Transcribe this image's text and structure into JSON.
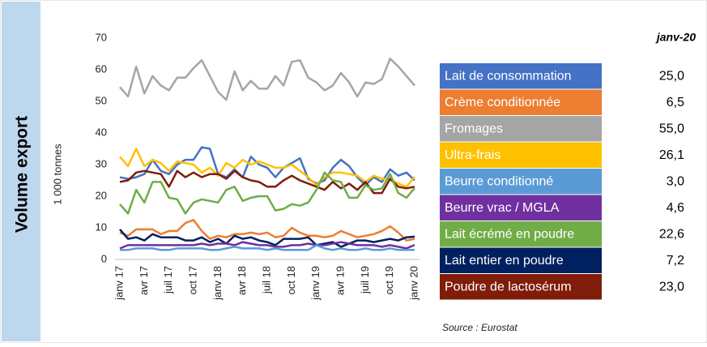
{
  "chart_data": {
    "type": "line",
    "y_label": "Volume export",
    "y_unit": "1 000 tonnes",
    "legend_header": "janv-20",
    "source": "Source : Eurostat",
    "ylim": [
      0,
      70
    ],
    "yticks": [
      0,
      10,
      20,
      30,
      40,
      50,
      60,
      70
    ],
    "categories": [
      "janv 17",
      null,
      null,
      "avr 17",
      null,
      null,
      "juil 17",
      null,
      null,
      "oct 17",
      null,
      null,
      "janv 18",
      null,
      null,
      "avr 18",
      null,
      null,
      "juil 18",
      null,
      null,
      "oct 18",
      null,
      null,
      "janv 19",
      null,
      null,
      "avr 19",
      null,
      null,
      "juil 19",
      null,
      null,
      "oct 19",
      null,
      null,
      "janv 20"
    ],
    "series": [
      {
        "name": "Lait de consommation",
        "color": "#4472c4",
        "values": [
          26,
          25.5,
          26,
          27,
          31.5,
          28,
          27,
          30,
          31.5,
          31.5,
          35.5,
          35,
          27,
          26,
          28.5,
          26,
          32.5,
          30,
          29,
          26,
          29,
          30.5,
          32,
          25.5,
          24,
          25,
          29,
          31.5,
          29.5,
          26,
          23.5,
          26,
          24.5,
          28.5,
          26.5,
          27.5,
          25.0
        ],
        "value_labels": [
          null,
          null,
          null,
          null,
          null,
          null,
          null,
          null,
          null,
          null,
          null,
          null,
          null,
          null,
          null,
          null,
          null,
          null,
          null,
          null,
          null,
          null,
          null,
          null,
          null,
          null,
          null,
          null,
          null,
          null,
          null,
          null,
          null,
          null,
          null,
          null,
          "25,0"
        ]
      },
      {
        "name": "Crème conditionnée",
        "color": "#ed7d31",
        "values": [
          8.5,
          7.5,
          9.5,
          9.5,
          9.5,
          8,
          9,
          9,
          11.5,
          12.5,
          9,
          6.5,
          7.5,
          7,
          8,
          8,
          8.5,
          8,
          8.5,
          7,
          7.5,
          10,
          8.5,
          7.5,
          7.5,
          7,
          7.5,
          9,
          8,
          7,
          7.5,
          8,
          9,
          10.5,
          8.5,
          6,
          6.5
        ],
        "value_labels": [
          null,
          null,
          null,
          null,
          null,
          null,
          null,
          null,
          null,
          null,
          null,
          null,
          null,
          null,
          null,
          null,
          null,
          null,
          null,
          null,
          null,
          null,
          null,
          null,
          null,
          null,
          null,
          null,
          null,
          null,
          null,
          null,
          null,
          null,
          null,
          null,
          "6,5"
        ]
      },
      {
        "name": "Fromages",
        "color": "#a5a5a5",
        "values": [
          54.5,
          51.5,
          61,
          52.5,
          58,
          55,
          53.5,
          57.5,
          57.5,
          60.5,
          63,
          58,
          53,
          50.5,
          59.5,
          53.5,
          56.5,
          54,
          54,
          58,
          55,
          62.5,
          63,
          57.5,
          56,
          53.5,
          55,
          59,
          56,
          51.5,
          56,
          55.5,
          57,
          63.5,
          61,
          58,
          55.0
        ],
        "value_labels": [
          null,
          null,
          null,
          null,
          null,
          null,
          null,
          null,
          null,
          null,
          null,
          null,
          null,
          null,
          null,
          null,
          null,
          null,
          null,
          null,
          null,
          null,
          null,
          null,
          null,
          null,
          null,
          null,
          null,
          null,
          null,
          null,
          null,
          null,
          null,
          null,
          "55,0"
        ]
      },
      {
        "name": "Ultra-frais",
        "color": "#ffc000",
        "values": [
          32.5,
          29.5,
          35,
          29.5,
          31.5,
          30.5,
          28,
          31,
          30.5,
          30,
          27.5,
          29,
          26.5,
          30.5,
          29,
          31.5,
          30,
          31,
          30,
          29,
          29,
          30,
          28,
          26,
          23.5,
          26,
          27.5,
          27.5,
          27,
          26.5,
          24.5,
          26.5,
          25.5,
          25.5,
          24,
          23,
          26.1
        ],
        "value_labels": [
          null,
          null,
          null,
          null,
          null,
          null,
          null,
          null,
          null,
          null,
          null,
          null,
          null,
          null,
          null,
          null,
          null,
          null,
          null,
          null,
          null,
          null,
          null,
          null,
          null,
          null,
          null,
          null,
          null,
          null,
          null,
          null,
          null,
          null,
          null,
          null,
          "26,1"
        ]
      },
      {
        "name": "Beurre conditionné",
        "color": "#5b9bd5",
        "values": [
          3,
          3,
          3.5,
          3.5,
          3.5,
          3,
          3,
          3.5,
          3.5,
          3.5,
          3.5,
          3,
          3,
          3.5,
          4,
          3.5,
          3.5,
          3.5,
          3,
          3.5,
          3,
          3,
          3,
          3,
          4.5,
          3.5,
          3,
          3.5,
          3,
          3,
          3.5,
          3,
          3,
          3.5,
          3,
          3,
          3.0
        ],
        "value_labels": [
          null,
          null,
          null,
          null,
          null,
          null,
          null,
          null,
          null,
          null,
          null,
          null,
          null,
          null,
          null,
          null,
          null,
          null,
          null,
          null,
          null,
          null,
          null,
          null,
          null,
          null,
          null,
          null,
          null,
          null,
          null,
          null,
          null,
          null,
          null,
          null,
          "3,0"
        ]
      },
      {
        "name": "Beurre vrac / MGLA",
        "color": "#7030a0",
        "values": [
          3.5,
          4.5,
          4.5,
          4.5,
          4.5,
          4.5,
          4.5,
          4.5,
          4.5,
          4.5,
          5,
          4.5,
          5,
          5,
          4.5,
          5.5,
          5,
          4.5,
          4.5,
          4,
          4,
          4.5,
          4.5,
          5,
          4.5,
          4.5,
          5,
          5.5,
          5,
          4.5,
          4.5,
          4.5,
          4,
          4.5,
          4,
          3.5,
          4.6
        ],
        "value_labels": [
          null,
          null,
          null,
          null,
          null,
          null,
          null,
          null,
          null,
          null,
          null,
          null,
          null,
          null,
          null,
          null,
          null,
          null,
          null,
          null,
          null,
          null,
          null,
          null,
          null,
          null,
          null,
          null,
          null,
          null,
          null,
          null,
          null,
          null,
          null,
          null,
          "4,6"
        ]
      },
      {
        "name": "Lait écrémé en poudre",
        "color": "#70ad47",
        "values": [
          17.5,
          14.5,
          22,
          18,
          24.5,
          24.5,
          19.5,
          19,
          14.5,
          18,
          19,
          18.5,
          18,
          22,
          23,
          18.5,
          19.5,
          20,
          20,
          15.5,
          16,
          17.5,
          17,
          18,
          22,
          27.5,
          25,
          24.5,
          19.5,
          19.5,
          23.5,
          22,
          22.5,
          27,
          21,
          19.5,
          22.6
        ],
        "value_labels": [
          null,
          null,
          null,
          null,
          null,
          null,
          null,
          null,
          null,
          null,
          null,
          null,
          null,
          null,
          null,
          null,
          null,
          null,
          null,
          null,
          null,
          null,
          null,
          null,
          null,
          null,
          null,
          null,
          null,
          null,
          null,
          null,
          null,
          null,
          null,
          null,
          "22,6"
        ]
      },
      {
        "name": "Lait entier en poudre",
        "color": "#002060",
        "values": [
          9.5,
          6.5,
          7,
          6,
          8,
          7,
          7,
          7,
          6,
          6,
          7,
          5.5,
          6.5,
          5,
          7.5,
          6.5,
          7,
          6,
          5.5,
          4.5,
          6.5,
          6.5,
          6.5,
          7,
          4.5,
          5,
          5.5,
          4,
          5,
          6,
          6,
          5.5,
          6,
          6.5,
          6,
          7,
          7.2
        ],
        "value_labels": [
          null,
          null,
          null,
          null,
          null,
          null,
          null,
          null,
          null,
          null,
          null,
          null,
          null,
          null,
          null,
          null,
          null,
          null,
          null,
          null,
          null,
          null,
          null,
          null,
          null,
          null,
          null,
          null,
          null,
          null,
          null,
          null,
          null,
          null,
          null,
          null,
          "7,2"
        ]
      },
      {
        "name": "Poudre de lactosérum",
        "color": "#7f1d0a",
        "values": [
          24.5,
          25,
          27.5,
          28,
          27.5,
          27,
          23,
          28,
          26,
          27.5,
          26,
          27,
          27,
          25.5,
          28,
          26,
          25,
          24.5,
          23,
          23,
          25,
          26.5,
          25,
          24,
          23,
          22,
          24.5,
          22.5,
          24,
          22,
          24.5,
          21,
          21,
          25.5,
          23,
          22.5,
          23.0
        ],
        "value_labels": [
          null,
          null,
          null,
          null,
          null,
          null,
          null,
          null,
          null,
          null,
          null,
          null,
          null,
          null,
          null,
          null,
          null,
          null,
          null,
          null,
          null,
          null,
          null,
          null,
          null,
          null,
          null,
          null,
          null,
          null,
          null,
          null,
          null,
          null,
          null,
          null,
          "23,0"
        ]
      }
    ]
  }
}
